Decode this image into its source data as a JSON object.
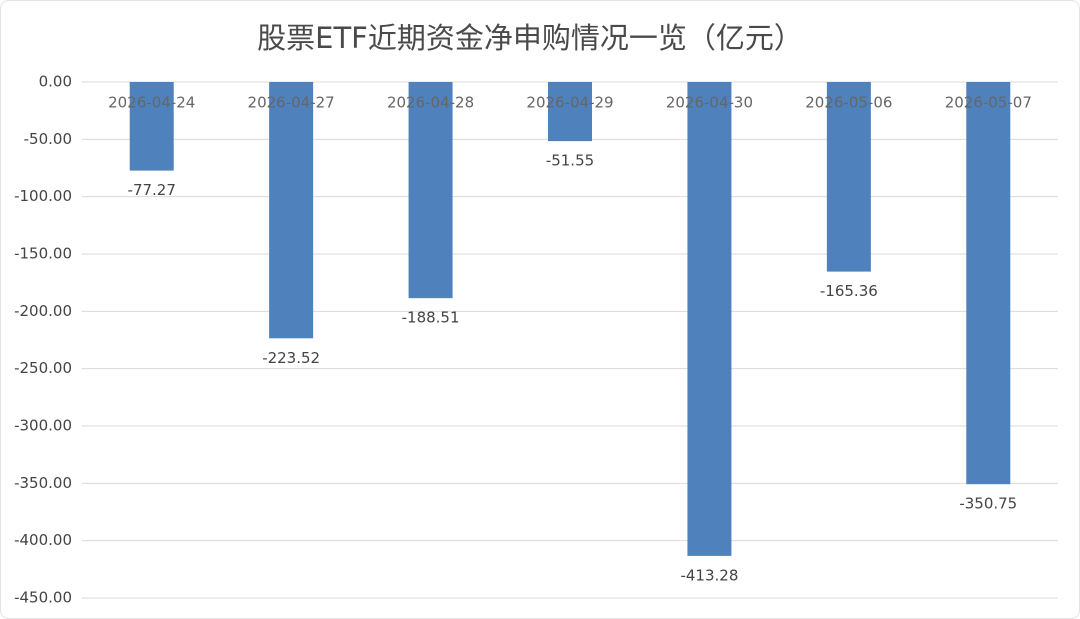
{
  "chart_data": {
    "type": "bar",
    "title": "股票ETF近期资金净申购情况一览（亿元）",
    "categories": [
      "2026-04-24",
      "2026-04-27",
      "2026-04-28",
      "2026-04-29",
      "2026-04-30",
      "2026-05-06",
      "2026-05-07"
    ],
    "values": [
      -77.27,
      -223.52,
      -188.51,
      -51.55,
      -413.28,
      -165.36,
      -350.75
    ],
    "color": "#4f81bd",
    "ylim": [
      -450,
      0
    ],
    "yticks": [
      {
        "value": 0,
        "label": "0.00"
      },
      {
        "value": -50,
        "label": "-50.00"
      },
      {
        "value": -100,
        "label": "-100.00"
      },
      {
        "value": -150,
        "label": "-150.00"
      },
      {
        "value": -200,
        "label": "-200.00"
      },
      {
        "value": -250,
        "label": "-250.00"
      },
      {
        "value": -300,
        "label": "-300.00"
      },
      {
        "value": -350,
        "label": "-350.00"
      },
      {
        "value": -400,
        "label": "-400.00"
      },
      {
        "value": -450,
        "label": "-450.00"
      }
    ],
    "grid": true
  }
}
